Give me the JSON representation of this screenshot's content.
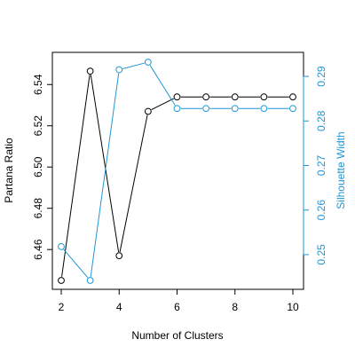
{
  "chart_data": {
    "type": "line",
    "xlabel": "Number of Clusters",
    "x": [
      2,
      3,
      4,
      5,
      6,
      7,
      8,
      9,
      10
    ],
    "xlim": [
      2,
      10
    ],
    "x_ticks": [
      2,
      4,
      6,
      8,
      10
    ],
    "y_left": {
      "label": "Partana Ratio",
      "lim": [
        6.445,
        6.547
      ],
      "ticks": [
        6.46,
        6.48,
        6.5,
        6.52,
        6.54
      ],
      "tick_labels": [
        "6.46",
        "6.48",
        "6.50",
        "6.52",
        "6.54"
      ],
      "color": "#000000"
    },
    "y_right": {
      "label": "Silhouette Width",
      "lim": [
        0.2442,
        0.2936
      ],
      "ticks": [
        0.25,
        0.26,
        0.27,
        0.28,
        0.29
      ],
      "tick_labels": [
        "0.25",
        "0.26",
        "0.27",
        "0.28",
        "0.29"
      ],
      "color": "#2196d3"
    },
    "series": [
      {
        "axis": "left",
        "color": "#000000",
        "values": [
          6.445,
          6.5465,
          6.457,
          6.527,
          6.534,
          6.534,
          6.534,
          6.534,
          6.534
        ]
      },
      {
        "axis": "right",
        "color": "#2196d3",
        "values": [
          0.2518,
          0.2442,
          0.2915,
          0.2932,
          0.2828,
          0.2828,
          0.2828,
          0.2828,
          0.2828
        ]
      }
    ],
    "grid": false,
    "legend": "none"
  }
}
